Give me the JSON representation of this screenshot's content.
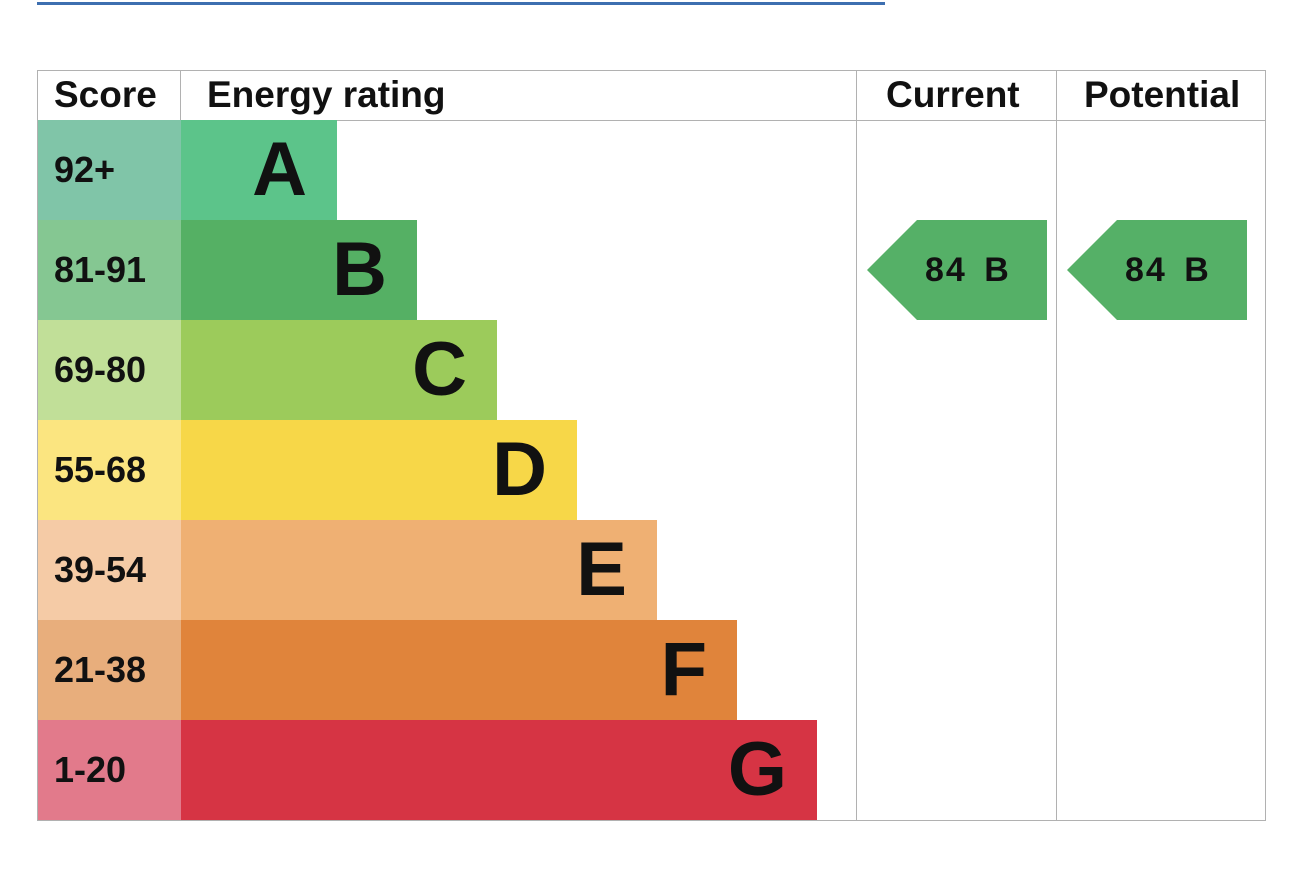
{
  "headers": {
    "score": "Score",
    "rating": "Energy rating",
    "current": "Current",
    "potential": "Potential"
  },
  "bands": [
    {
      "score": "92+",
      "letter": "A",
      "color": "#5cc48a",
      "score_color": "#80c5a8"
    },
    {
      "score": "81-91",
      "letter": "B",
      "color": "#55b064",
      "score_color": "#85c792"
    },
    {
      "score": "69-80",
      "letter": "C",
      "color": "#9ccb5b",
      "score_color": "#c1df98"
    },
    {
      "score": "55-68",
      "letter": "D",
      "color": "#f7d748",
      "score_color": "#fbe580"
    },
    {
      "score": "39-54",
      "letter": "E",
      "color": "#efb073",
      "score_color": "#f5cba6"
    },
    {
      "score": "21-38",
      "letter": "F",
      "color": "#e0843b",
      "score_color": "#e8ae7c"
    },
    {
      "score": "1-20",
      "letter": "G",
      "color": "#d63444",
      "score_color": "#e27a8b"
    }
  ],
  "current": {
    "label": "84 B",
    "value": 84,
    "band": "B",
    "color": "#55b067"
  },
  "potential": {
    "label": "84 B",
    "value": 84,
    "band": "B",
    "color": "#55b067"
  }
}
